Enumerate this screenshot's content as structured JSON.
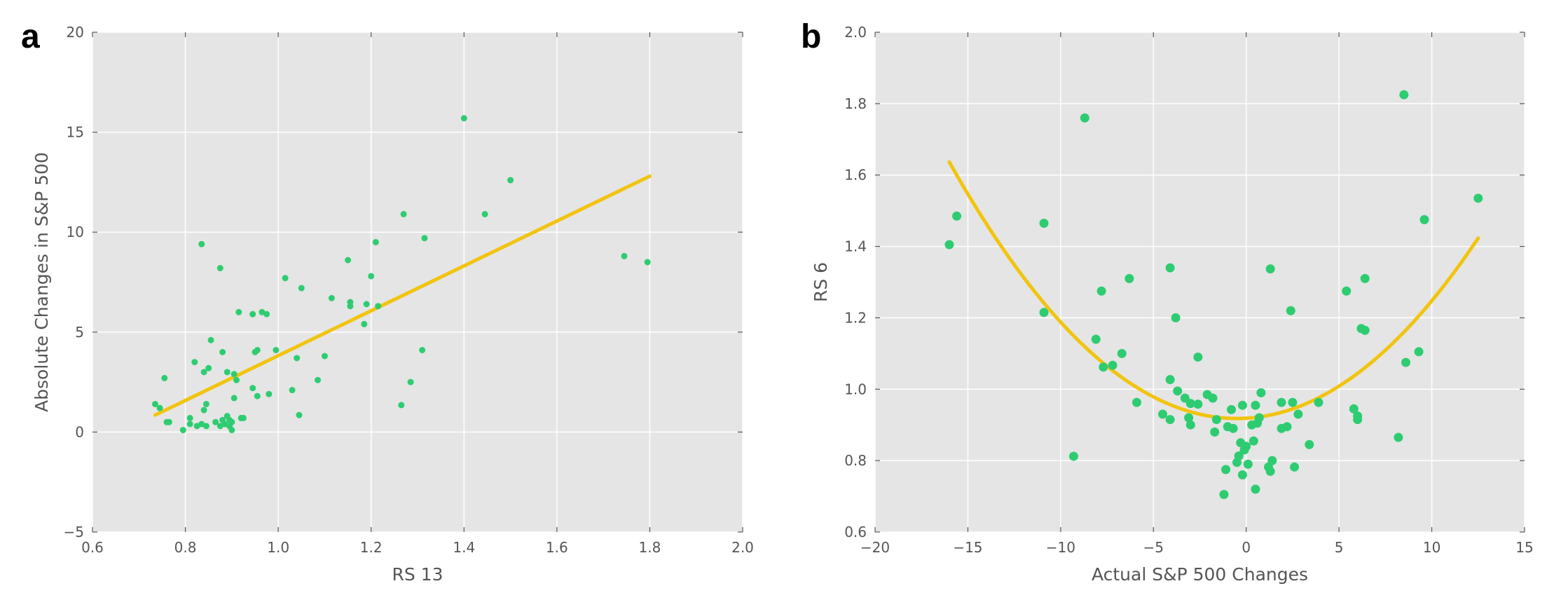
{
  "colors": {
    "plot_bg": "#e5e5e5",
    "grid": "#ffffff",
    "point": "#2ecc71",
    "fit_line": "#f1c40f",
    "tick_text": "#555555"
  },
  "chart_data": [
    {
      "type": "scatter",
      "panel_label": "a",
      "xlabel": "RS 13",
      "ylabel": "Absolute Changes in S&P 500",
      "xlim": [
        0.6,
        2.0
      ],
      "ylim": [
        -5,
        20
      ],
      "xticks": [
        0.6,
        0.8,
        1.0,
        1.2,
        1.4,
        1.6,
        1.8,
        2.0
      ],
      "xtick_labels": [
        "0.6",
        "0.8",
        "1.0",
        "1.2",
        "1.4",
        "1.6",
        "1.8",
        "2.0"
      ],
      "yticks": [
        -5,
        0,
        5,
        10,
        15,
        20
      ],
      "ytick_labels": [
        "−5",
        "0",
        "5",
        "10",
        "15",
        "20"
      ],
      "grid": true,
      "points": [
        [
          0.735,
          1.4
        ],
        [
          0.745,
          1.2
        ],
        [
          0.755,
          2.7
        ],
        [
          0.76,
          0.5
        ],
        [
          0.765,
          0.5
        ],
        [
          0.795,
          0.1
        ],
        [
          0.81,
          0.7
        ],
        [
          0.81,
          0.4
        ],
        [
          0.82,
          3.5
        ],
        [
          0.825,
          0.3
        ],
        [
          0.835,
          0.4
        ],
        [
          0.835,
          9.4
        ],
        [
          0.84,
          3.0
        ],
        [
          0.84,
          1.1
        ],
        [
          0.845,
          0.3
        ],
        [
          0.845,
          1.4
        ],
        [
          0.85,
          3.2
        ],
        [
          0.855,
          4.6
        ],
        [
          0.865,
          0.5
        ],
        [
          0.875,
          8.2
        ],
        [
          0.875,
          0.3
        ],
        [
          0.88,
          4.0
        ],
        [
          0.88,
          0.6
        ],
        [
          0.885,
          0.4
        ],
        [
          0.89,
          3.0
        ],
        [
          0.89,
          0.8
        ],
        [
          0.895,
          0.3
        ],
        [
          0.895,
          0.6
        ],
        [
          0.9,
          0.1
        ],
        [
          0.9,
          0.5
        ],
        [
          0.905,
          2.9
        ],
        [
          0.905,
          1.7
        ],
        [
          0.91,
          2.6
        ],
        [
          0.915,
          6.0
        ],
        [
          0.92,
          0.7
        ],
        [
          0.925,
          0.7
        ],
        [
          0.945,
          2.2
        ],
        [
          0.945,
          5.9
        ],
        [
          0.95,
          4.0
        ],
        [
          0.955,
          4.1
        ],
        [
          0.955,
          1.8
        ],
        [
          0.965,
          6.0
        ],
        [
          0.975,
          5.9
        ],
        [
          0.98,
          1.9
        ],
        [
          0.995,
          4.1
        ],
        [
          1.015,
          7.7
        ],
        [
          1.03,
          2.1
        ],
        [
          1.04,
          3.7
        ],
        [
          1.045,
          0.85
        ],
        [
          1.05,
          7.2
        ],
        [
          1.085,
          2.6
        ],
        [
          1.1,
          3.8
        ],
        [
          1.115,
          6.7
        ],
        [
          1.15,
          8.6
        ],
        [
          1.155,
          6.3
        ],
        [
          1.155,
          6.5
        ],
        [
          1.185,
          5.4
        ],
        [
          1.19,
          6.4
        ],
        [
          1.2,
          7.8
        ],
        [
          1.21,
          9.5
        ],
        [
          1.215,
          6.3
        ],
        [
          1.265,
          1.35
        ],
        [
          1.27,
          10.9
        ],
        [
          1.285,
          2.5
        ],
        [
          1.31,
          4.1
        ],
        [
          1.315,
          9.7
        ],
        [
          1.4,
          15.7
        ],
        [
          1.445,
          10.9
        ],
        [
          1.5,
          12.6
        ],
        [
          1.745,
          8.8
        ],
        [
          1.795,
          8.5
        ]
      ],
      "fit_line": {
        "x": [
          0.735,
          1.8
        ],
        "y": [
          0.85,
          12.8
        ]
      }
    },
    {
      "type": "scatter",
      "panel_label": "b",
      "xlabel": "Actual S&P 500 Changes",
      "ylabel": "RS 6",
      "xlim": [
        -20,
        15
      ],
      "ylim": [
        0.6,
        2.0
      ],
      "xticks": [
        -20,
        -15,
        -10,
        -5,
        0,
        5,
        10,
        15
      ],
      "xtick_labels": [
        "−20",
        "−15",
        "−10",
        "−5",
        "0",
        "5",
        "10",
        "15"
      ],
      "yticks": [
        0.6,
        0.8,
        1.0,
        1.2,
        1.4,
        1.6,
        1.8,
        2.0
      ],
      "ytick_labels": [
        "0.6",
        "0.8",
        "1.0",
        "1.2",
        "1.4",
        "1.6",
        "1.8",
        "2.0"
      ],
      "grid": true,
      "points": [
        [
          -16.0,
          1.405
        ],
        [
          -15.6,
          1.485
        ],
        [
          -10.9,
          1.465
        ],
        [
          -10.9,
          1.215
        ],
        [
          -9.3,
          0.812
        ],
        [
          -8.7,
          1.76
        ],
        [
          -8.1,
          1.14
        ],
        [
          -7.8,
          1.275
        ],
        [
          -7.7,
          1.062
        ],
        [
          -7.2,
          1.067
        ],
        [
          -6.7,
          1.1
        ],
        [
          -6.3,
          1.31
        ],
        [
          -5.9,
          0.963
        ],
        [
          -4.5,
          0.93
        ],
        [
          -4.1,
          1.34
        ],
        [
          -4.1,
          0.915
        ],
        [
          -4.1,
          1.027
        ],
        [
          -3.8,
          1.2
        ],
        [
          -3.7,
          0.995
        ],
        [
          -3.3,
          0.975
        ],
        [
          -3.1,
          0.92
        ],
        [
          -3.0,
          0.96
        ],
        [
          -3.0,
          0.9
        ],
        [
          -2.6,
          1.09
        ],
        [
          -2.6,
          0.958
        ],
        [
          -2.1,
          0.985
        ],
        [
          -1.8,
          0.975
        ],
        [
          -1.7,
          0.88
        ],
        [
          -1.6,
          0.915
        ],
        [
          -1.2,
          0.705
        ],
        [
          -1.1,
          0.775
        ],
        [
          -1.0,
          0.895
        ],
        [
          -0.8,
          0.943
        ],
        [
          -0.7,
          0.89
        ],
        [
          -0.5,
          0.795
        ],
        [
          -0.4,
          0.813
        ],
        [
          -0.3,
          0.85
        ],
        [
          -0.2,
          0.955
        ],
        [
          -0.2,
          0.76
        ],
        [
          -0.1,
          0.83
        ],
        [
          0.0,
          0.84
        ],
        [
          0.1,
          0.79
        ],
        [
          0.3,
          0.9
        ],
        [
          0.4,
          0.855
        ],
        [
          0.5,
          0.72
        ],
        [
          0.5,
          0.955
        ],
        [
          0.6,
          0.905
        ],
        [
          0.7,
          0.92
        ],
        [
          0.8,
          0.99
        ],
        [
          1.2,
          0.782
        ],
        [
          1.3,
          1.337
        ],
        [
          1.3,
          0.77
        ],
        [
          1.4,
          0.8
        ],
        [
          1.9,
          0.963
        ],
        [
          1.9,
          0.89
        ],
        [
          2.2,
          0.895
        ],
        [
          2.4,
          1.22
        ],
        [
          2.5,
          0.963
        ],
        [
          2.6,
          0.782
        ],
        [
          2.8,
          0.93
        ],
        [
          3.4,
          0.845
        ],
        [
          3.9,
          0.963
        ],
        [
          5.4,
          1.275
        ],
        [
          5.8,
          0.945
        ],
        [
          6.0,
          0.925
        ],
        [
          6.0,
          0.915
        ],
        [
          6.2,
          1.17
        ],
        [
          6.4,
          1.31
        ],
        [
          6.4,
          1.165
        ],
        [
          8.2,
          0.865
        ],
        [
          8.5,
          1.825
        ],
        [
          8.6,
          1.075
        ],
        [
          9.3,
          1.105
        ],
        [
          9.6,
          1.475
        ],
        [
          12.5,
          1.535
        ]
      ],
      "fit_curve": {
        "type": "quadratic",
        "x_range": [
          -16.0,
          12.5
        ],
        "vertex_x": -0.5,
        "vertex_y": 0.918,
        "a": 0.00299
      }
    }
  ]
}
